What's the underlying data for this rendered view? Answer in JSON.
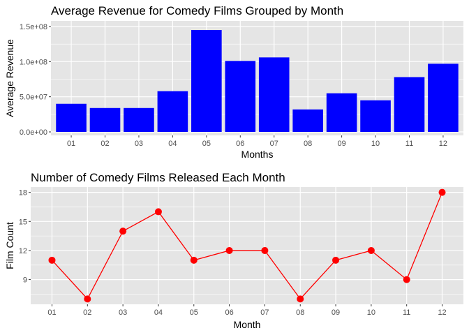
{
  "colors": {
    "panel_background": "#e5e5e5",
    "grid": "#ffffff",
    "bar_fill": "#0000ff",
    "line_color": "#ff0000",
    "tick_text": "#4d4d4d"
  },
  "chart_data": [
    {
      "type": "bar",
      "title": "Average Revenue for Comedy Films Grouped by Month",
      "xlabel": "Months",
      "ylabel": "Average Revenue",
      "categories": [
        "01",
        "02",
        "03",
        "04",
        "05",
        "06",
        "07",
        "08",
        "09",
        "10",
        "11",
        "12"
      ],
      "values": [
        40000000,
        34000000,
        34000000,
        58000000,
        145000000,
        101000000,
        106000000,
        32000000,
        55000000,
        45000000,
        78000000,
        97000000
      ],
      "ylim": [
        0,
        150000000
      ],
      "yticks": [
        0,
        50000000,
        100000000,
        150000000
      ],
      "ytick_labels": [
        "0.0e+00",
        "5.0e+07",
        "1.0e+08",
        "1.5e+08"
      ],
      "grid": true,
      "series_color": "#0000ff"
    },
    {
      "type": "line",
      "title": "Number of Comedy Films Released Each Month",
      "xlabel": "Month",
      "ylabel": "Film Count",
      "categories": [
        "01",
        "02",
        "03",
        "04",
        "05",
        "06",
        "07",
        "08",
        "09",
        "10",
        "11",
        "12"
      ],
      "values": [
        11,
        7,
        14,
        16,
        11,
        12,
        12,
        7,
        11,
        12,
        9,
        18
      ],
      "ylim": [
        6.45,
        18.55
      ],
      "yticks": [
        9,
        12,
        15,
        18
      ],
      "ytick_labels": [
        "9",
        "12",
        "15",
        "18"
      ],
      "grid": true,
      "series_color": "#ff0000"
    }
  ]
}
